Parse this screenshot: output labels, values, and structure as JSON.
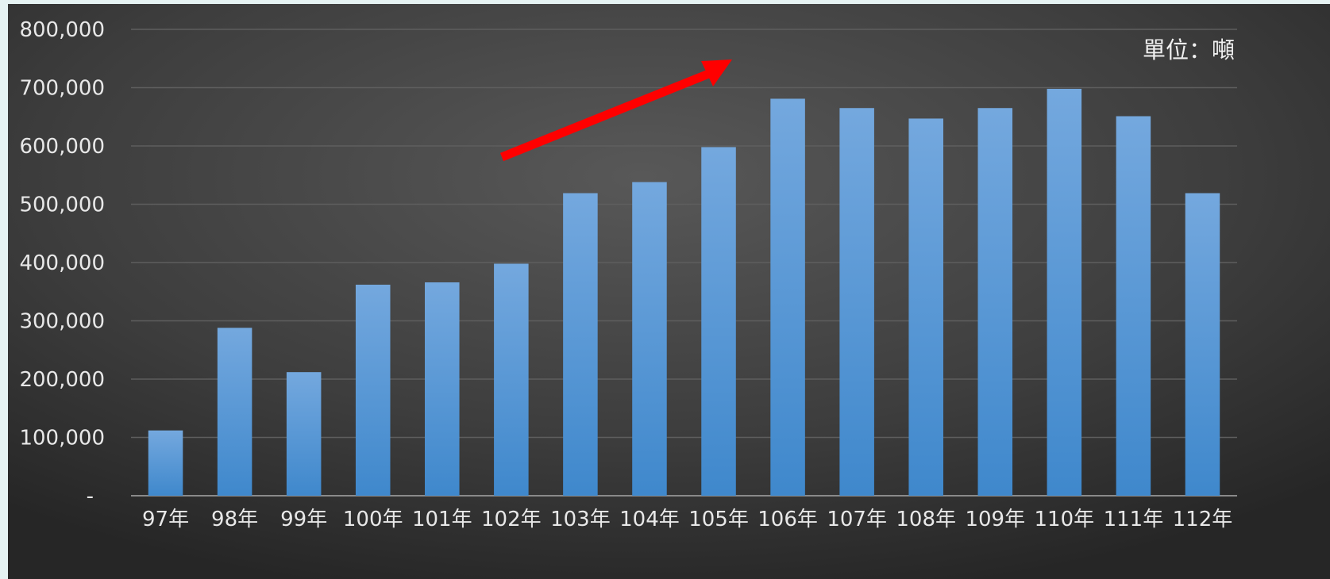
{
  "chart_data": {
    "type": "bar",
    "title": "",
    "xlabel": "",
    "ylabel": "",
    "unit_label": "單位：噸",
    "categories": [
      "97年",
      "98年",
      "99年",
      "100年",
      "101年",
      "102年",
      "103年",
      "104年",
      "105年",
      "106年",
      "107年",
      "108年",
      "109年",
      "110年",
      "111年",
      "112年"
    ],
    "values": [
      112000,
      288000,
      212000,
      362000,
      366000,
      398000,
      519000,
      538000,
      598000,
      681000,
      665000,
      647000,
      665000,
      698000,
      651000,
      519000
    ],
    "ylim": [
      0,
      800000
    ],
    "yticks": [
      0,
      100000,
      200000,
      300000,
      400000,
      500000,
      600000,
      700000,
      800000
    ],
    "ytick_labels": [
      "-",
      "100,000",
      "200,000",
      "300,000",
      "400,000",
      "500,000",
      "600,000",
      "700,000",
      "800,000"
    ],
    "grid": true,
    "legend": "none",
    "colors": {
      "bar_top": "#74a8de",
      "bar_bottom": "#3f88cc",
      "arrow": "#ff0000",
      "grid": "#5e5e5e",
      "axis": "#8a8a8a"
    },
    "annotations": [
      {
        "type": "arrow",
        "direction": "up-right",
        "color": "#ff0000"
      }
    ]
  }
}
